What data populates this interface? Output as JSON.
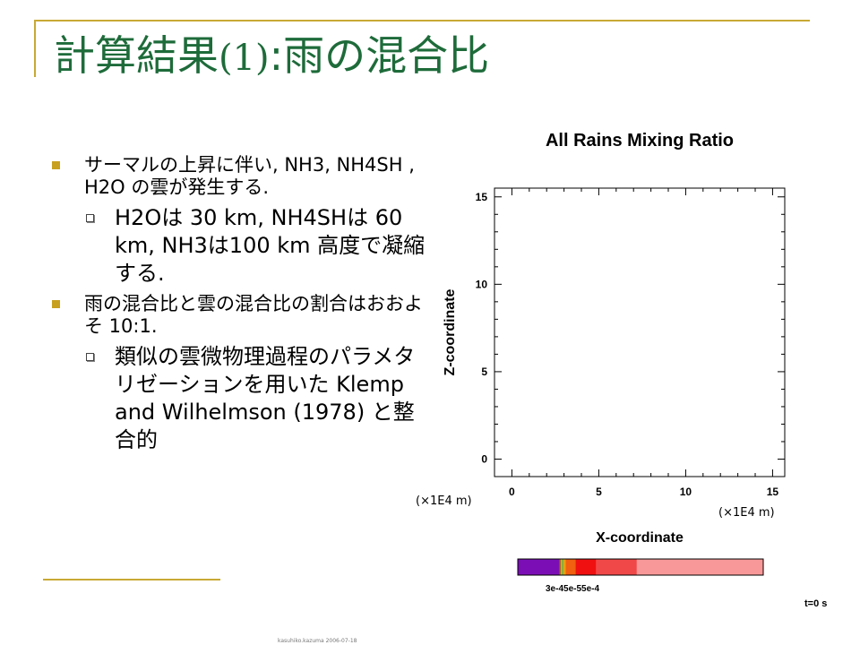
{
  "slide": {
    "title_main": "計算結果",
    "title_paren": "(1)",
    "title_colon": ":",
    "title_rest": "雨の混合比"
  },
  "bullets": [
    {
      "text": "サーマルの上昇に伴い, NH3, NH4SH , H2O の雲が発生する.",
      "sub": "H2Oは 30 km, NH4SHは 60 km, NH3は100 km 高度で凝縮する."
    },
    {
      "text": "雨の混合比と雲の混合比の割合はおおよそ 10:1.",
      "sub": "類似の雲微物理過程のパラメタリゼーションを用いた Klemp and Wilhelmson (1978) と整合的"
    }
  ],
  "footer_text": "kasuhiko.kazuma 2006-07-18",
  "chart_data": {
    "type": "heatmap",
    "title": "All Rains Mixing Ratio",
    "xlabel": "X-coordinate",
    "ylabel": "Z-coordinate",
    "xlim": [
      -1,
      15.7
    ],
    "ylim": [
      -1,
      15.5
    ],
    "xticks": [
      "0",
      "5",
      "10",
      "15"
    ],
    "yticks": [
      "0",
      "5",
      "10",
      "15"
    ],
    "x_unit": "(×1E4 m)",
    "y_unit": "(×1E4 m)",
    "x_tick_values": [
      0,
      5,
      10,
      15
    ],
    "y_tick_values": [
      0,
      5,
      10,
      15
    ],
    "grid": false,
    "colorbar": {
      "segments": [
        {
          "color": "#7b0fb5",
          "width": 0.17
        },
        {
          "color": "#a15a10",
          "width": 0.005
        },
        {
          "color": "#d7b520",
          "width": 0.005
        },
        {
          "color": "#58a020",
          "width": 0.005
        },
        {
          "color": "#e8a010",
          "width": 0.01
        },
        {
          "color": "#f06010",
          "width": 0.04
        },
        {
          "color": "#f01010",
          "width": 0.085
        },
        {
          "color": "#f04848",
          "width": 0.165
        },
        {
          "color": "#f89898",
          "width": 0.515
        }
      ],
      "label": "3e-45e-55e-4"
    },
    "time_label": "t=0 s"
  }
}
